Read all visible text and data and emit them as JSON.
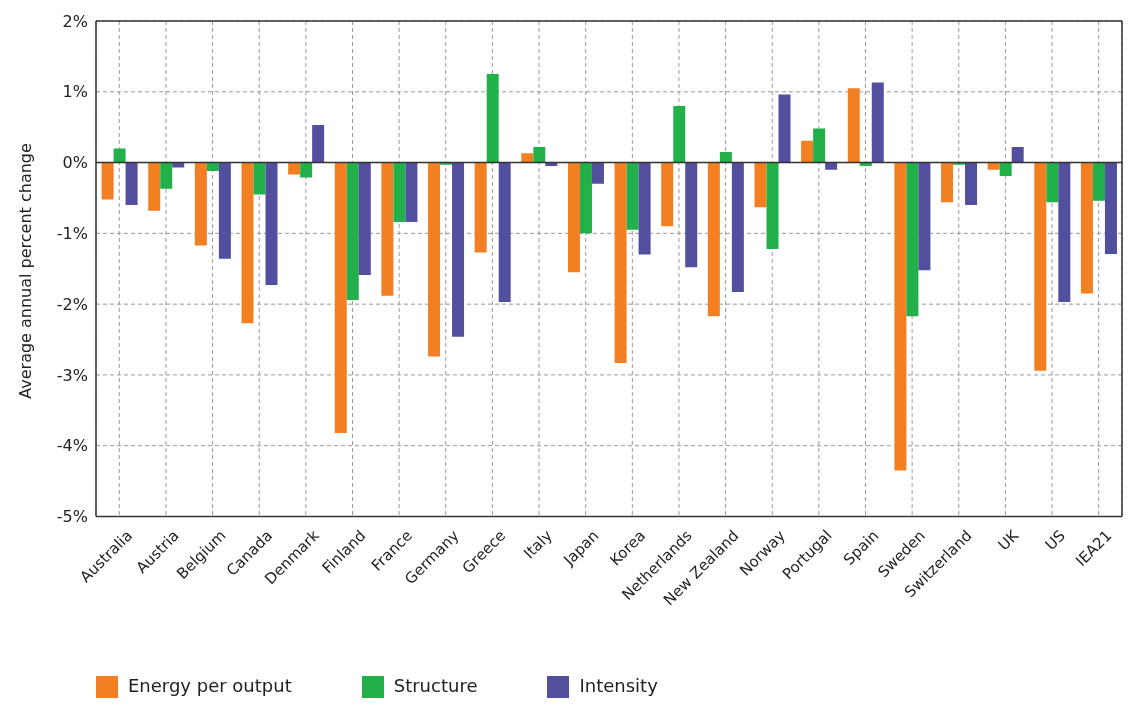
{
  "chart_data": {
    "type": "bar",
    "ylabel": "Average annual percent change",
    "categories": [
      "Australia",
      "Austria",
      "Belgium",
      "Canada",
      "Denmark",
      "Finland",
      "France",
      "Germany",
      "Greece",
      "Italy",
      "Japan",
      "Korea",
      "Netherlands",
      "New Zealand",
      "Norway",
      "Portugal",
      "Spain",
      "Sweden",
      "Switzerland",
      "UK",
      "US",
      "IEA21"
    ],
    "series": [
      {
        "name": "Energy per output",
        "color": "#f28023",
        "values": [
          -0.52,
          -0.68,
          -1.17,
          -2.27,
          -0.17,
          -3.82,
          -1.88,
          -2.74,
          -1.27,
          0.13,
          -1.55,
          -2.83,
          -0.9,
          -2.17,
          -0.63,
          0.31,
          1.05,
          -4.35,
          -0.56,
          -0.1,
          -2.94,
          -1.85
        ]
      },
      {
        "name": "Structure",
        "color": "#22b04b",
        "values": [
          0.2,
          -0.37,
          -0.12,
          -0.45,
          -0.21,
          -1.94,
          -0.84,
          -0.03,
          1.25,
          0.22,
          -1.0,
          -0.95,
          0.8,
          0.15,
          -1.22,
          0.48,
          -0.05,
          -2.17,
          -0.03,
          -0.19,
          -0.56,
          -0.54
        ]
      },
      {
        "name": "Intensity",
        "color": "#524f9f",
        "values": [
          -0.6,
          -0.07,
          -1.36,
          -1.73,
          0.53,
          -1.59,
          -0.84,
          -2.46,
          -1.97,
          -0.05,
          -0.3,
          -1.3,
          -1.48,
          -1.83,
          0.96,
          -0.1,
          1.13,
          -1.52,
          -0.6,
          0.22,
          -1.97,
          -1.29
        ]
      }
    ],
    "ylim": [
      -5,
      2
    ],
    "yticks": [
      {
        "value": -5,
        "label": "-5%"
      },
      {
        "value": -4,
        "label": "-4%"
      },
      {
        "value": -3,
        "label": "-3%"
      },
      {
        "value": -2,
        "label": "-2%"
      },
      {
        "value": -1,
        "label": "-1%"
      },
      {
        "value": 0,
        "label": "0%"
      },
      {
        "value": 1,
        "label": "1%"
      },
      {
        "value": 2,
        "label": "2%"
      }
    ],
    "ref_lines": [
      {
        "axis": "y",
        "value": 0
      }
    ],
    "grid": true,
    "legend": "bottom left"
  }
}
